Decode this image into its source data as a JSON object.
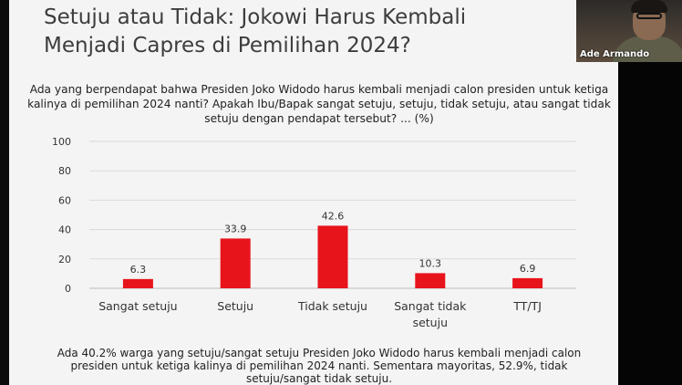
{
  "slide": {
    "title_line1": "Setuju atau Tidak: Jokowi Harus Kembali",
    "title_line2": "Menjadi Capres di Pemilihan 2024?",
    "question": "Ada yang berpendapat bahwa Presiden Joko Widodo harus kembali menjadi calon presiden untuk ketiga kalinya di pemilihan 2024 nanti? Apakah Ibu/Bapak sangat setuju, setuju, tidak setuju, atau sangat tidak setuju dengan pendapat tersebut? ... (%)",
    "footer": "Ada 40.2% warga yang setuju/sangat setuju Presiden Joko Widodo harus kembali menjadi calon presiden untuk ketiga kalinya di pemilihan 2024 nanti. Sementara mayoritas, 52.9%, tidak setuju/sangat tidak setuju."
  },
  "participant": {
    "name": "Ade Armando"
  },
  "chart_data": {
    "type": "bar",
    "categories": [
      [
        "Sangat setuju"
      ],
      [
        "Setuju"
      ],
      [
        "Tidak setuju"
      ],
      [
        "Sangat tidak",
        "setuju"
      ],
      [
        "TT/TJ"
      ]
    ],
    "values": [
      6.3,
      33.9,
      42.6,
      10.3,
      6.9
    ],
    "value_labels": [
      "6.3",
      "33.9",
      "42.6",
      "10.3",
      "6.9"
    ],
    "ylim": [
      0,
      100
    ],
    "yticks": [
      0,
      20,
      40,
      60,
      80,
      100
    ],
    "grid": true,
    "bar_color": "#e8141c"
  }
}
